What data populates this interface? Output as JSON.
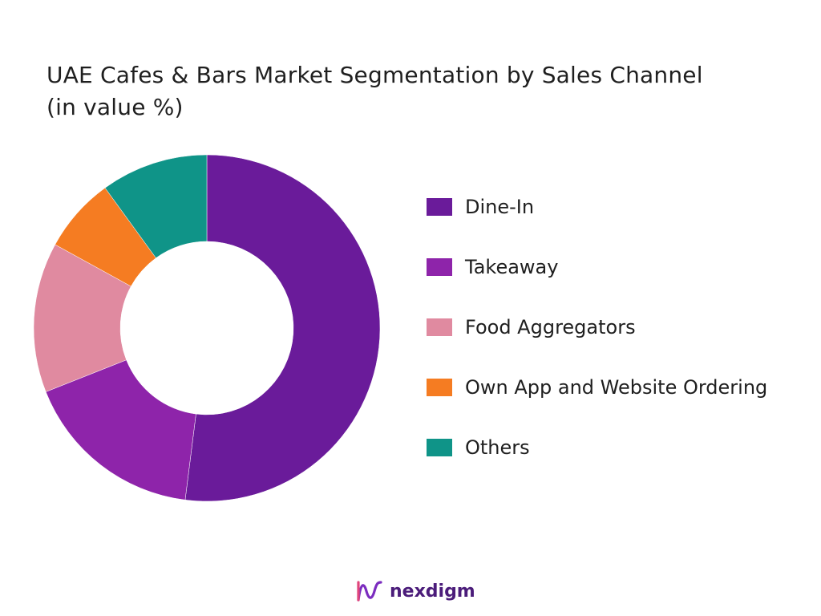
{
  "chart_data": {
    "type": "pie",
    "title": "UAE Cafes & Bars Market Segmentation by Sales Channel (in value %)",
    "donut": true,
    "categories": [
      "Dine-In",
      "Takeaway",
      "Food Aggregators",
      "Own App and Website Ordering",
      "Others"
    ],
    "values": [
      52,
      17,
      14,
      7,
      10
    ],
    "colors": [
      "#6a1b9a",
      "#8e24aa",
      "#e08aa0",
      "#f57c22",
      "#0f9488"
    ],
    "legend_position": "right"
  },
  "brand": {
    "name": "nexdigm",
    "icon": "nexdigm-logo-icon",
    "color": "#4b1c7a"
  }
}
